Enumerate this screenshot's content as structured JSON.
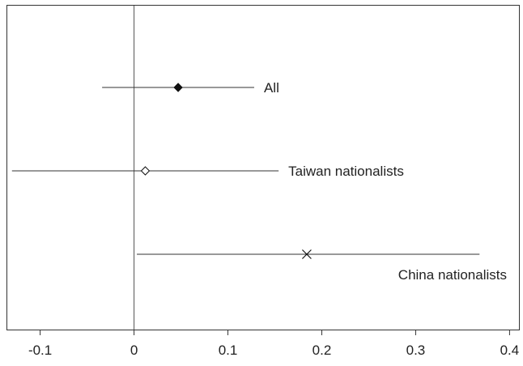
{
  "chart_data": {
    "type": "scatter",
    "title": "",
    "xlabel": "",
    "ylabel": "",
    "xlim": [
      -0.135,
      0.41
    ],
    "xticks": [
      -0.1,
      0,
      0.1,
      0.2,
      0.3,
      0.4
    ],
    "xtick_labels": [
      "-0.1",
      "0",
      "0.1",
      "0.2",
      "0.3",
      "0.4"
    ],
    "reference_line_x": 0,
    "grid": false,
    "legend": "none",
    "series": [
      {
        "name": "All",
        "estimate": 0.047,
        "ci": [
          -0.034,
          0.128
        ],
        "marker": "filled-diamond",
        "label_placement": "right"
      },
      {
        "name": "Taiwan nationalists",
        "estimate": 0.012,
        "ci": [
          -0.13,
          0.154
        ],
        "marker": "hollow-diamond",
        "label_placement": "right"
      },
      {
        "name": "China nationalists",
        "estimate": 0.184,
        "ci": [
          0.003,
          0.368
        ],
        "marker": "cross",
        "label_placement": "below"
      }
    ],
    "colors": {
      "line": "#333333",
      "marker": "#111111",
      "axis": "#333333"
    }
  }
}
